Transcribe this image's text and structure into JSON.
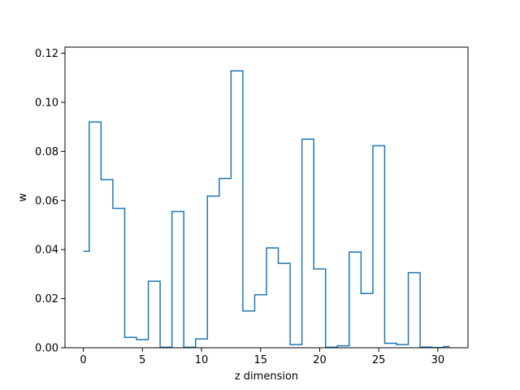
{
  "chart_data": {
    "type": "line",
    "drawstyle": "steps-mid",
    "title": "",
    "xlabel": "z dimension",
    "ylabel": "w",
    "xlim": [
      -1.55,
      32.55
    ],
    "ylim": [
      0.0,
      0.1225
    ],
    "x_ticks": [
      0,
      5,
      10,
      15,
      20,
      25,
      30
    ],
    "y_ticks": [
      0.0,
      0.02,
      0.04,
      0.06,
      0.08,
      0.1,
      0.12
    ],
    "grid": false,
    "legend": "none",
    "series": [
      {
        "color": "#1f77b4",
        "x": [
          0,
          1,
          2,
          3,
          4,
          5,
          6,
          7,
          8,
          9,
          10,
          11,
          12,
          13,
          14,
          15,
          16,
          17,
          18,
          19,
          20,
          21,
          22,
          23,
          24,
          25,
          26,
          27,
          28,
          29,
          30,
          31
        ],
        "values": [
          0.0393,
          0.092,
          0.0685,
          0.0568,
          0.0042,
          0.0033,
          0.0271,
          0.0002,
          0.0555,
          0.0002,
          0.0036,
          0.0618,
          0.069,
          0.1128,
          0.015,
          0.0216,
          0.0407,
          0.0344,
          0.0013,
          0.085,
          0.0321,
          0.0002,
          0.0008,
          0.039,
          0.0221,
          0.0823,
          0.0018,
          0.0013,
          0.0306,
          0.0003,
          0.0001,
          0.0005
        ]
      }
    ]
  }
}
